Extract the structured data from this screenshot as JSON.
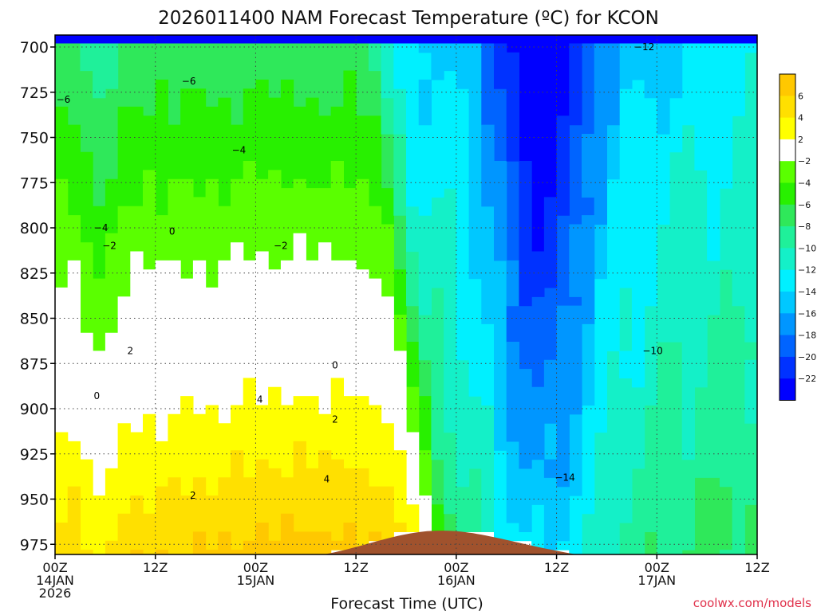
{
  "chart_data": {
    "type": "heatmap",
    "title": "2026011400 NAM Forecast Temperature (ºC) for KCON",
    "xlabel": "Forecast Time (UTC)",
    "ylabel": "",
    "credit": "coolwx.com/models",
    "x_ticks": [
      {
        "hours": 0,
        "lines": [
          "00Z",
          "14JAN",
          "2026"
        ]
      },
      {
        "hours": 12,
        "lines": [
          "12Z"
        ]
      },
      {
        "hours": 24,
        "lines": [
          "00Z",
          "15JAN"
        ]
      },
      {
        "hours": 36,
        "lines": [
          "12Z"
        ]
      },
      {
        "hours": 48,
        "lines": [
          "00Z",
          "16JAN"
        ]
      },
      {
        "hours": 60,
        "lines": [
          "12Z"
        ]
      },
      {
        "hours": 72,
        "lines": [
          "00Z",
          "17JAN"
        ]
      },
      {
        "hours": 84,
        "lines": [
          "12Z"
        ]
      }
    ],
    "xlim": [
      0,
      84
    ],
    "y_ticks": [
      700,
      725,
      750,
      775,
      800,
      825,
      850,
      875,
      900,
      925,
      950,
      975
    ],
    "ylim": [
      994,
      693
    ],
    "y_scale": "pressure (hPa), inverted",
    "colorbar": {
      "levels": [
        8,
        6,
        4,
        2,
        -2,
        -4,
        -6,
        -8,
        -10,
        -12,
        -14,
        -16,
        -18,
        -20,
        -22,
        -24
      ],
      "labels": [
        "6",
        "4",
        "2",
        "−2",
        "−4",
        "−6",
        "−8",
        "−10",
        "−12",
        "−14",
        "−16",
        "−18",
        "−20",
        "−22"
      ],
      "colors": [
        "#ffc800",
        "#ffe000",
        "#ffff00",
        "#ffffff",
        "#5aff00",
        "#28f000",
        "#2fe85a",
        "#1ff09a",
        "#14f0c8",
        "#00f0ff",
        "#00c8ff",
        "#0096ff",
        "#0064ff",
        "#0032ff",
        "#0000ff"
      ]
    },
    "ground_color": "#a0522d",
    "contour_labels": [
      {
        "text": "−6",
        "hours": 1.0,
        "p": 729
      },
      {
        "text": "−6",
        "hours": 16.0,
        "p": 719
      },
      {
        "text": "−4",
        "hours": 22.0,
        "p": 757
      },
      {
        "text": "−4",
        "hours": 5.5,
        "p": 800
      },
      {
        "text": "−2",
        "hours": 6.5,
        "p": 810
      },
      {
        "text": "0",
        "hours": 14.0,
        "p": 802
      },
      {
        "text": "−2",
        "hours": 27.0,
        "p": 810
      },
      {
        "text": "2",
        "hours": 9.0,
        "p": 868
      },
      {
        "text": "0",
        "hours": 5.0,
        "p": 893
      },
      {
        "text": "0",
        "hours": 33.5,
        "p": 876
      },
      {
        "text": "4",
        "hours": 24.5,
        "p": 895
      },
      {
        "text": "2",
        "hours": 33.5,
        "p": 906
      },
      {
        "text": "2",
        "hours": 16.5,
        "p": 948
      },
      {
        "text": "4",
        "hours": 32.5,
        "p": 939
      },
      {
        "text": "−14",
        "hours": 61.0,
        "p": 938
      },
      {
        "text": "−12",
        "hours": 70.5,
        "p": 700
      },
      {
        "text": "−10",
        "hours": 71.5,
        "p": 868
      }
    ]
  }
}
